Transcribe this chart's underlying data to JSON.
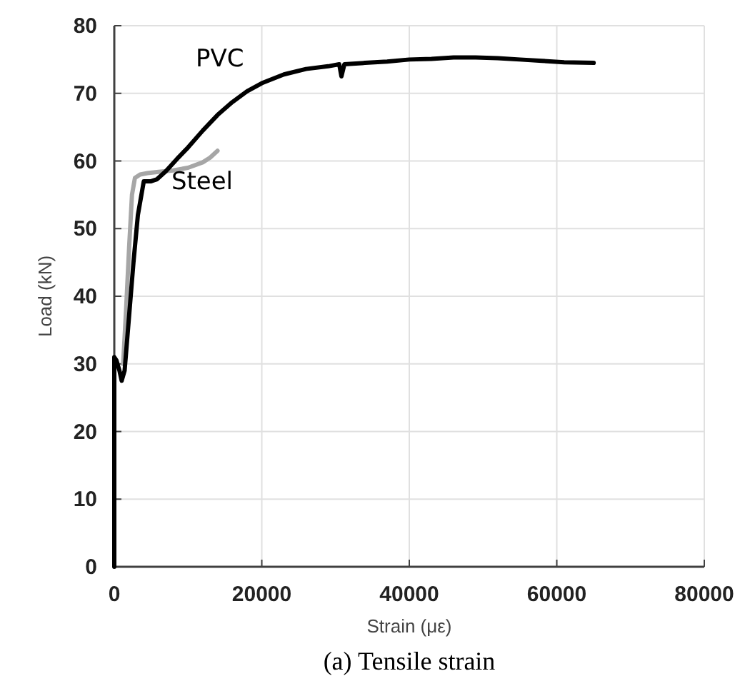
{
  "chart_data": {
    "type": "line",
    "xlabel": "Strain (με)",
    "ylabel": "Load (kN)",
    "xlim": [
      0,
      80000
    ],
    "ylim": [
      0,
      80
    ],
    "xticks": [
      0,
      20000,
      40000,
      60000,
      80000
    ],
    "yticks": [
      0,
      10,
      20,
      30,
      40,
      50,
      60,
      70,
      80
    ],
    "grid": true,
    "legend": false,
    "marker": "none",
    "line_style": "solid",
    "series": [
      {
        "name": "Steel",
        "color": "#a6a6a6",
        "x": [
          1200,
          1600,
          2000,
          2400,
          2800,
          3500,
          4500,
          6000,
          8000,
          10000,
          12000,
          13000,
          14000
        ],
        "values": [
          30,
          38,
          47,
          55,
          57.5,
          58,
          58.2,
          58.4,
          58.6,
          59,
          59.8,
          60.5,
          61.5
        ]
      },
      {
        "name": "PVC",
        "color": "#000000",
        "x": [
          0,
          0,
          300,
          700,
          1000,
          1400,
          2000,
          2600,
          3200,
          4000,
          5000,
          5800,
          7000,
          8500,
          10000,
          12000,
          14000,
          16000,
          18000,
          20000,
          23000,
          26000,
          29000,
          30500,
          30800,
          31200,
          34000,
          37000,
          40000,
          43000,
          46000,
          49000,
          52000,
          55000,
          58000,
          61000,
          65000
        ],
        "values": [
          0,
          31,
          30.5,
          29,
          27.5,
          29,
          37,
          45,
          52,
          57,
          57,
          57.3,
          58.5,
          60.3,
          62,
          64.5,
          66.8,
          68.7,
          70.3,
          71.5,
          72.8,
          73.6,
          74,
          74.3,
          72.5,
          74.3,
          74.5,
          74.7,
          75,
          75.1,
          75.3,
          75.3,
          75.2,
          75,
          74.8,
          74.6,
          74.5
        ]
      }
    ],
    "annotations": [
      "(a) Tensile strain"
    ]
  }
}
